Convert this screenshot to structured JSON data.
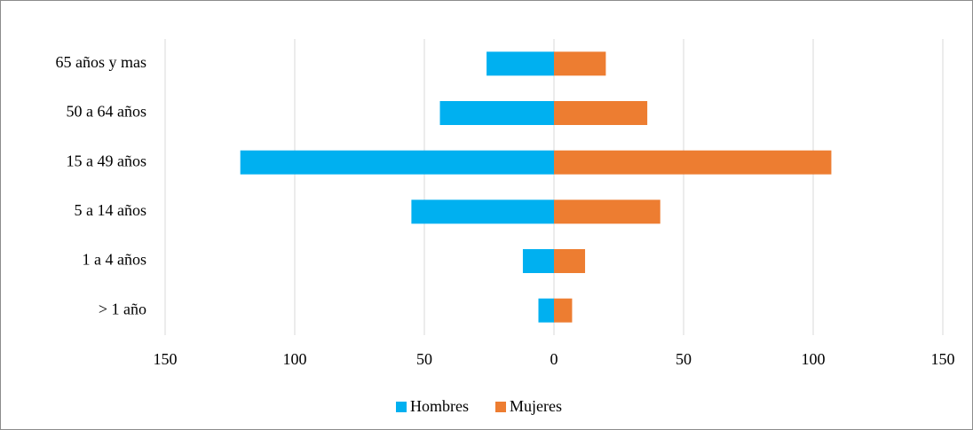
{
  "chart_data": {
    "type": "bar",
    "orientation": "horizontal",
    "stacked": true,
    "categories": [
      "65 años y mas",
      "50 a 64 años",
      "15 a 49 años",
      "5 a 14 años",
      "1 a 4 años",
      "> 1 año"
    ],
    "series": [
      {
        "name": "Hombres",
        "color": "#00b0f0",
        "values": [
          -26,
          -44,
          -121,
          -55,
          -12,
          -6
        ]
      },
      {
        "name": "Mujeres",
        "color": "#ed7d31",
        "values": [
          20,
          36,
          107,
          41,
          12,
          7
        ]
      }
    ],
    "xlim": [
      -150,
      150
    ],
    "xticks": [
      {
        "value": -150,
        "label": "150"
      },
      {
        "value": -100,
        "label": "100"
      },
      {
        "value": -50,
        "label": "50"
      },
      0,
      50,
      100,
      150
    ],
    "grid": true,
    "legend": "bottom"
  }
}
